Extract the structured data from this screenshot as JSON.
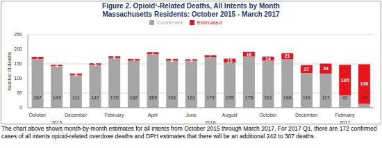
{
  "chart_data": {
    "type": "bar",
    "title": "Figure 2. Opioid¹-Related Deaths, All Intents by Month",
    "subtitle": "Massachusetts Residents: October 2015 - March 2017",
    "y_label": "Number of deaths",
    "caption": "The chart above shows month-by-month estimates for all intents from October 2015 through March 2017. For 2017 Q1, there are 172 confirmed cases of all intents opioid-related overdose deaths and DPH estimates that there will be an additional 242 to 307 deaths.",
    "categories": [
      "October",
      null,
      "December",
      null,
      "February",
      null,
      "April",
      null,
      "June",
      null,
      "August",
      null,
      "October",
      null,
      "December",
      null,
      "February",
      null
    ],
    "year_labels": [
      null,
      "2015",
      null,
      null,
      null,
      null,
      null,
      null,
      null,
      "2016",
      null,
      null,
      null,
      null,
      null,
      null,
      "2017",
      null
    ],
    "series": [
      {
        "name": "Confirmed",
        "color": "#a6a6a6",
        "values": [
          167,
          143,
          111,
          147,
          170,
          162,
          183,
          161,
          161,
          173,
          155,
          175,
          161,
          166,
          119,
          117,
          42,
          13
        ]
      },
      {
        "name": "Estimated",
        "color": "#e8141c",
        "values": [
          7,
          4,
          6,
          5,
          6,
          5,
          7,
          6,
          5,
          7,
          13,
          16,
          14,
          21,
          27,
          34,
          105,
          136
        ]
      }
    ],
    "stacked": true,
    "data_labels": true,
    "legend": "top",
    "grid": true,
    "ylim": [
      0,
      250
    ],
    "yticks": [
      0,
      50,
      100,
      150,
      200,
      250
    ]
  }
}
